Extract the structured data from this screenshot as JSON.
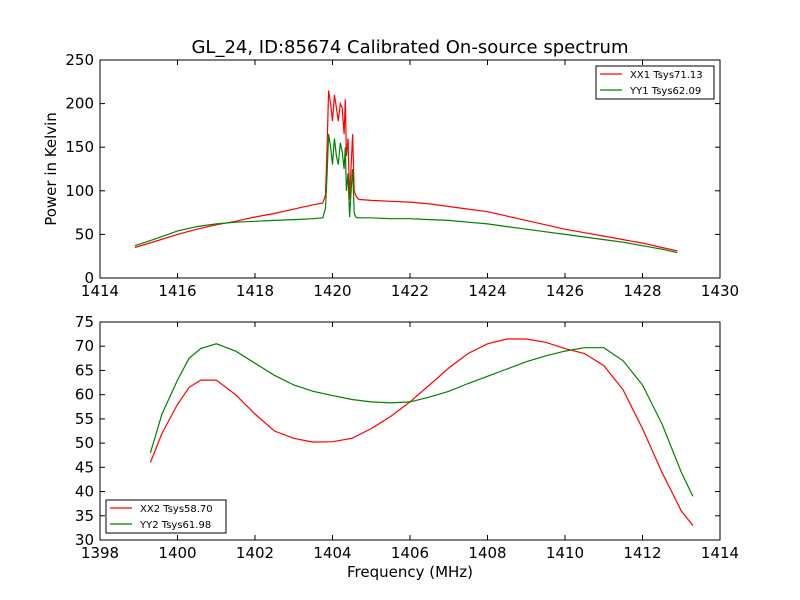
{
  "title": "GL_24, ID:85674 Calibrated On-source spectrum",
  "chart_data": [
    {
      "type": "line",
      "ylabel": "Power in Kelvin",
      "xlabel": "",
      "xlim": [
        1414,
        1430
      ],
      "ylim": [
        0,
        250
      ],
      "xticks": [
        1414,
        1416,
        1418,
        1420,
        1422,
        1424,
        1426,
        1428,
        1430
      ],
      "yticks": [
        0,
        50,
        100,
        150,
        200,
        250
      ],
      "legend_position": "top-right",
      "grid": false,
      "series": [
        {
          "name": "XX1 Tsys71.13",
          "color": "#ff0000",
          "x": [
            1414.9,
            1415.5,
            1416,
            1416.5,
            1417,
            1417.5,
            1418,
            1418.5,
            1419,
            1419.5,
            1419.75,
            1419.82,
            1419.86,
            1419.9,
            1419.95,
            1420.0,
            1420.05,
            1420.1,
            1420.15,
            1420.2,
            1420.25,
            1420.3,
            1420.33,
            1420.36,
            1420.4,
            1420.44,
            1420.48,
            1420.52,
            1420.56,
            1420.6,
            1420.65,
            1420.7,
            1421,
            1421.5,
            1422,
            1422.5,
            1423,
            1423.5,
            1424,
            1424.5,
            1425,
            1425.5,
            1426,
            1426.5,
            1427,
            1427.5,
            1428,
            1428.5,
            1428.9
          ],
          "y": [
            35,
            43,
            50,
            56,
            61,
            65,
            70,
            74,
            79,
            84,
            86,
            95,
            150,
            215,
            200,
            180,
            210,
            195,
            180,
            200,
            195,
            165,
            205,
            140,
            160,
            90,
            128,
            165,
            100,
            95,
            91,
            90,
            89,
            88,
            87,
            85,
            82,
            79,
            76,
            71,
            66,
            61,
            56,
            52,
            48,
            44,
            40,
            35,
            31
          ]
        },
        {
          "name": "YY1 Tsys62.09",
          "color": "#008000",
          "x": [
            1414.9,
            1415.5,
            1416,
            1416.5,
            1417,
            1417.5,
            1418,
            1418.5,
            1419,
            1419.5,
            1419.75,
            1419.82,
            1419.86,
            1419.9,
            1419.95,
            1420.0,
            1420.05,
            1420.1,
            1420.15,
            1420.2,
            1420.25,
            1420.3,
            1420.33,
            1420.36,
            1420.4,
            1420.44,
            1420.48,
            1420.52,
            1420.56,
            1420.6,
            1420.65,
            1420.7,
            1421,
            1421.5,
            1422,
            1422.5,
            1423,
            1423.5,
            1424,
            1424.5,
            1425,
            1425.5,
            1426,
            1426.5,
            1427,
            1427.5,
            1428,
            1428.5,
            1428.9
          ],
          "y": [
            37,
            46,
            54,
            59,
            62,
            64,
            65,
            66,
            67,
            68,
            69,
            80,
            120,
            165,
            150,
            130,
            160,
            140,
            130,
            155,
            145,
            125,
            150,
            100,
            120,
            70,
            100,
            125,
            75,
            70,
            69,
            69,
            69,
            68,
            68,
            67,
            66,
            64,
            62,
            59,
            56,
            53,
            50,
            47,
            44,
            41,
            37,
            33,
            29
          ]
        }
      ]
    },
    {
      "type": "line",
      "xlabel": "Frequency (MHz)",
      "ylabel": "",
      "xlim": [
        1398,
        1414
      ],
      "ylim": [
        30,
        75
      ],
      "xticks": [
        1398,
        1400,
        1402,
        1404,
        1406,
        1408,
        1410,
        1412,
        1414
      ],
      "yticks": [
        30,
        35,
        40,
        45,
        50,
        55,
        60,
        65,
        70,
        75
      ],
      "legend_position": "bottom-left",
      "grid": false,
      "series": [
        {
          "name": "XX2 Tsys58.70",
          "color": "#ff0000",
          "x": [
            1399.3,
            1399.6,
            1400,
            1400.3,
            1400.6,
            1401,
            1401.5,
            1402,
            1402.5,
            1403,
            1403.5,
            1404,
            1404.5,
            1405,
            1405.5,
            1406,
            1406.5,
            1407,
            1407.5,
            1408,
            1408.5,
            1409,
            1409.5,
            1410,
            1410.5,
            1411,
            1411.5,
            1412,
            1412.5,
            1413,
            1413.3
          ],
          "y": [
            46,
            52,
            58,
            61.5,
            63,
            63,
            60,
            56,
            52.5,
            51,
            50.2,
            50.3,
            51,
            53,
            55.5,
            58.5,
            62,
            65.5,
            68.5,
            70.5,
            71.5,
            71.5,
            70.8,
            69.5,
            68.5,
            66,
            61,
            53,
            44,
            36,
            33
          ]
        },
        {
          "name": "YY2 Tsys61.98",
          "color": "#008000",
          "x": [
            1399.3,
            1399.6,
            1400,
            1400.3,
            1400.6,
            1401,
            1401.5,
            1402,
            1402.5,
            1403,
            1403.5,
            1404,
            1404.5,
            1405,
            1405.5,
            1406,
            1406.5,
            1407,
            1407.5,
            1408,
            1408.5,
            1409,
            1409.5,
            1410,
            1410.5,
            1411,
            1411.5,
            1412,
            1412.5,
            1413,
            1413.3
          ],
          "y": [
            48,
            56,
            63,
            67.5,
            69.5,
            70.5,
            69,
            66.5,
            64,
            62,
            60.7,
            59.8,
            59,
            58.5,
            58.3,
            58.5,
            59.5,
            60.7,
            62.3,
            63.8,
            65.3,
            66.8,
            68,
            69,
            69.7,
            69.7,
            67,
            62,
            54,
            44,
            39
          ]
        }
      ]
    }
  ]
}
